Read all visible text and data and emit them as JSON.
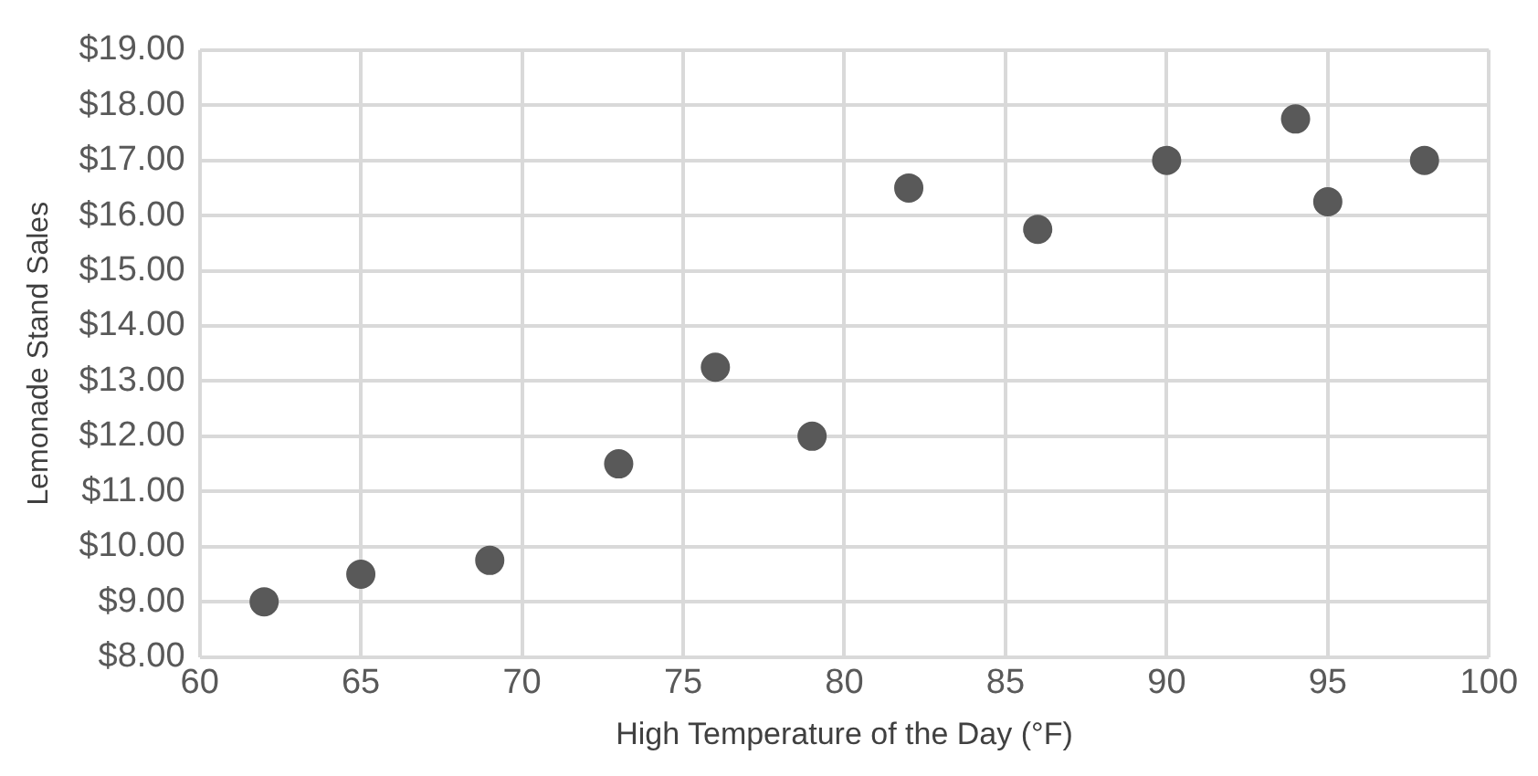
{
  "chart_data": {
    "type": "scatter",
    "xlabel": "High Temperature of the Day (°F)",
    "ylabel": "Lemonade Stand Sales",
    "x": [
      62,
      65,
      69,
      73,
      76,
      79,
      82,
      86,
      90,
      94,
      95,
      98
    ],
    "values": [
      9.0,
      9.5,
      9.75,
      11.5,
      13.25,
      12.0,
      16.5,
      15.75,
      17.0,
      17.75,
      16.25,
      17.0
    ],
    "color": "#595959",
    "marker": "circle",
    "grid": true,
    "legend": false,
    "xlim": [
      60,
      100
    ],
    "xticks": [
      60,
      65,
      70,
      75,
      80,
      85,
      90,
      95,
      100
    ],
    "ylim": [
      8,
      19
    ],
    "yticks": [
      {
        "value": 8,
        "label": "$8.00"
      },
      {
        "value": 9,
        "label": "$9.00"
      },
      {
        "value": 10,
        "label": "$10.00"
      },
      {
        "value": 11,
        "label": "$11.00"
      },
      {
        "value": 12,
        "label": "$12.00"
      },
      {
        "value": 13,
        "label": "$13.00"
      },
      {
        "value": 14,
        "label": "$14.00"
      },
      {
        "value": 15,
        "label": "$15.00"
      },
      {
        "value": 16,
        "label": "$16.00"
      },
      {
        "value": 17,
        "label": "$17.00"
      },
      {
        "value": 18,
        "label": "$18.00"
      },
      {
        "value": 19,
        "label": "$19.00"
      }
    ]
  }
}
